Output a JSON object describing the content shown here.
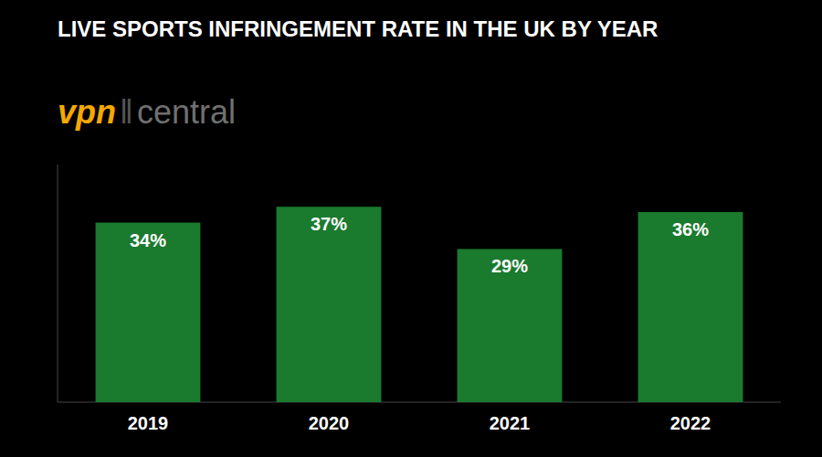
{
  "chart_data": {
    "type": "bar",
    "title": "LIVE SPORTS INFRINGEMENT RATE IN THE UK BY YEAR",
    "annotations": [
      {
        "text": "vpn",
        "color": "#f5a800"
      },
      {
        "text": "‖",
        "color": "#555555"
      },
      {
        "text": "central",
        "color": "#707070"
      }
    ],
    "categories": [
      "2019",
      "2020",
      "2021",
      "2022"
    ],
    "values": [
      34,
      37,
      29,
      36
    ],
    "value_labels": [
      "34%",
      "37%",
      "29%",
      "36%"
    ],
    "color": "#1a7a2e",
    "ylim": [
      0,
      45
    ],
    "yticks": [],
    "data_labels": true,
    "tick_labels": "x"
  }
}
